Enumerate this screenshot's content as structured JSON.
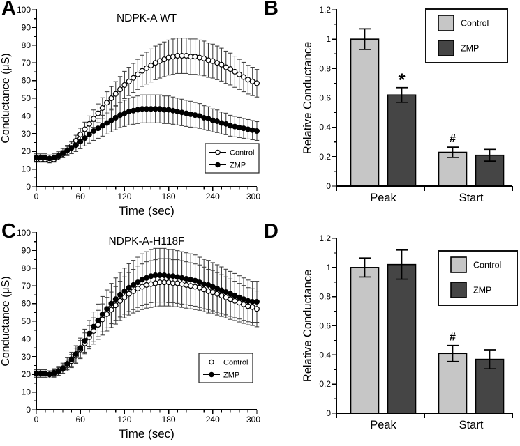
{
  "figure": {
    "background": "#ffffff",
    "text_color": "#000000",
    "panels": [
      "A",
      "B",
      "C",
      "D"
    ]
  },
  "chart_data": [
    {
      "panel": "A",
      "type": "line",
      "title": "NDPK-A WT",
      "xlabel": "Time (sec)",
      "ylabel": "Conductance (μS)",
      "xlim": [
        0,
        300
      ],
      "ylim": [
        0,
        100
      ],
      "x_major_ticks": [
        0,
        60,
        120,
        180,
        240,
        300
      ],
      "x_minor_step": 12,
      "y_major_step": 10,
      "y_minor_step": 5,
      "legend": {
        "position": "bottom-right",
        "entries": [
          "Control",
          "ZMP"
        ]
      },
      "x": [
        0,
        6,
        12,
        18,
        24,
        30,
        36,
        42,
        48,
        54,
        60,
        66,
        72,
        78,
        84,
        90,
        96,
        102,
        108,
        114,
        120,
        126,
        132,
        138,
        144,
        150,
        156,
        162,
        168,
        174,
        180,
        186,
        192,
        198,
        204,
        210,
        216,
        222,
        228,
        234,
        240,
        246,
        252,
        258,
        264,
        270,
        276,
        282,
        288,
        294,
        300
      ],
      "series": [
        {
          "name": "Control",
          "marker": "open-circle",
          "line_color": "#000000",
          "values": [
            15.5,
            15.5,
            15.5,
            15,
            15.5,
            17,
            18.5,
            20.5,
            23,
            26,
            29.5,
            32.5,
            35.5,
            38.5,
            41.5,
            44.5,
            47.5,
            50,
            52.5,
            55,
            57.5,
            59.5,
            61.5,
            63.5,
            65.5,
            67,
            68.5,
            70,
            71,
            72,
            73,
            73.5,
            74,
            74,
            74,
            73.5,
            73.5,
            73,
            72.5,
            71.5,
            71,
            70,
            69,
            67.5,
            66.5,
            65,
            63.5,
            62,
            60.5,
            59.5,
            58.5
          ],
          "errors": [
            1.6,
            1.6,
            1.6,
            1.5,
            1.6,
            1.8,
            2,
            2.3,
            2.7,
            3.1,
            3.6,
            4,
            4.5,
            4.9,
            5.3,
            5.8,
            6.2,
            6.6,
            6.9,
            7.3,
            7.7,
            8,
            8.2,
            8.5,
            8.8,
            9,
            9.3,
            9.5,
            9.6,
            9.8,
            9.9,
            10,
            10,
            10,
            10,
            10,
            10,
            9.9,
            9.8,
            9.7,
            9.6,
            9.5,
            9.3,
            9.1,
            9,
            8.8,
            8.5,
            8.3,
            8.1,
            8,
            7.8
          ]
        },
        {
          "name": "ZMP",
          "marker": "filled-circle",
          "line_color": "#000000",
          "values": [
            16.5,
            16.5,
            16.5,
            16,
            16.5,
            17.5,
            19,
            20.5,
            22,
            23.5,
            25.5,
            27.5,
            29.5,
            31.5,
            33,
            34.5,
            36,
            37.5,
            39,
            40.5,
            41.5,
            42.5,
            43,
            43.5,
            44,
            44,
            44,
            44,
            44,
            43.5,
            43.5,
            43,
            42.5,
            42,
            41.5,
            41,
            40.5,
            40,
            39,
            38.5,
            37.5,
            37,
            36,
            35.5,
            34.5,
            34,
            33.5,
            33,
            32.5,
            32,
            31.5
          ],
          "errors": [
            2.1,
            2.1,
            2.1,
            2,
            2.1,
            2.3,
            2.6,
            2.9,
            3.3,
            3.6,
            4,
            4.4,
            4.8,
            5.3,
            5.6,
            5.9,
            6.2,
            6.5,
            6.8,
            7.1,
            7.4,
            7.6,
            7.7,
            7.8,
            7.9,
            7.9,
            7.9,
            7.9,
            7.9,
            7.8,
            7.8,
            7.7,
            7.6,
            7.5,
            7.4,
            7.3,
            7.1,
            7,
            6.8,
            6.7,
            6.5,
            6.4,
            6.2,
            6.1,
            5.9,
            5.8,
            5.7,
            5.6,
            5.5,
            5.4,
            5.3
          ]
        }
      ]
    },
    {
      "panel": "B",
      "type": "bar",
      "ylabel": "Relative Conductance",
      "ylim": [
        0,
        1.2
      ],
      "y_major_step": 0.2,
      "y_minor_step": 0.1,
      "categories": [
        "Peak",
        "Start"
      ],
      "series": [
        {
          "name": "Control",
          "color": "#c6c6c6",
          "values": [
            1.0,
            0.23
          ],
          "errors": [
            0.07,
            0.035
          ]
        },
        {
          "name": "ZMP",
          "color": "#454545",
          "values": [
            0.62,
            0.21
          ],
          "errors": [
            0.05,
            0.04
          ]
        }
      ],
      "annotations": [
        {
          "text": "*",
          "category": "Peak",
          "series": "ZMP"
        },
        {
          "text": "#",
          "category": "Start",
          "series": "Control"
        }
      ],
      "legend": {
        "position": "top-right",
        "entries": [
          "Control",
          "ZMP"
        ]
      }
    },
    {
      "panel": "C",
      "type": "line",
      "title": "NDPK-A-H118F",
      "xlabel": "Time (sec)",
      "ylabel": "Conductance (μS)",
      "xlim": [
        0,
        300
      ],
      "ylim": [
        0,
        100
      ],
      "x_major_ticks": [
        0,
        60,
        120,
        180,
        240,
        300
      ],
      "x_minor_step": 12,
      "y_major_step": 10,
      "y_minor_step": 5,
      "legend": {
        "position": "bottom-right",
        "entries": [
          "Control",
          "ZMP"
        ]
      },
      "x": [
        0,
        6,
        12,
        18,
        24,
        30,
        36,
        42,
        48,
        54,
        60,
        66,
        72,
        78,
        84,
        90,
        96,
        102,
        108,
        114,
        120,
        126,
        132,
        138,
        144,
        150,
        156,
        162,
        168,
        174,
        180,
        186,
        192,
        198,
        204,
        210,
        216,
        222,
        228,
        234,
        240,
        246,
        252,
        258,
        264,
        270,
        276,
        282,
        288,
        294,
        300
      ],
      "series": [
        {
          "name": "Control",
          "marker": "open-circle",
          "line_color": "#000000",
          "values": [
            20.5,
            20.5,
            20.5,
            20,
            20.5,
            21.5,
            23,
            25,
            27.5,
            30.5,
            34,
            37.5,
            41,
            44.5,
            48,
            51,
            54,
            56.5,
            59,
            61.5,
            63.5,
            65.5,
            67,
            68.5,
            69.5,
            70.5,
            71,
            71.5,
            72,
            72,
            72,
            71.5,
            71.5,
            71,
            70.5,
            70,
            69.5,
            69,
            68,
            67,
            66.5,
            65.5,
            64.5,
            63.5,
            62.5,
            61.5,
            60.5,
            59.5,
            58.5,
            58,
            57
          ],
          "errors": [
            2.1,
            2.1,
            2.1,
            2,
            2.1,
            2.3,
            2.7,
            3.1,
            3.7,
            4.3,
            5.1,
            5.9,
            6.6,
            7.4,
            8.2,
            8.8,
            9.5,
            10,
            10.6,
            11.1,
            11.6,
            12,
            12.3,
            12.7,
            12.9,
            13.1,
            13.2,
            13.3,
            13.4,
            13.4,
            13.4,
            13.3,
            13.3,
            13.2,
            13.1,
            13,
            12.9,
            12.8,
            12.6,
            12.3,
            12.2,
            12,
            11.8,
            11.6,
            11.4,
            11.1,
            10.9,
            10.7,
            10.5,
            10.4,
            10.1
          ]
        },
        {
          "name": "ZMP",
          "marker": "filled-circle",
          "line_color": "#000000",
          "values": [
            20.5,
            20.5,
            20.5,
            20,
            21,
            22,
            23.5,
            26,
            28.5,
            31.5,
            35,
            39,
            43,
            47,
            50.5,
            54,
            57,
            60,
            62.5,
            65,
            67,
            69,
            70.5,
            72,
            73.5,
            74.5,
            75.5,
            76,
            76,
            76,
            75.5,
            75.5,
            75,
            74.5,
            74,
            73.5,
            73,
            72,
            71,
            70.5,
            69.5,
            68.5,
            67.5,
            66.5,
            65.5,
            64.5,
            63.5,
            62.5,
            61.5,
            61,
            61
          ],
          "errors": [
            2.1,
            2.1,
            2.1,
            2,
            2.2,
            2.5,
            2.8,
            3.4,
            4,
            4.7,
            5.5,
            6.5,
            7.4,
            8.3,
            9.2,
            10,
            10.7,
            11.4,
            12,
            12.6,
            13,
            13.5,
            13.9,
            14.2,
            14.6,
            14.8,
            15,
            15.2,
            15.2,
            15.2,
            15,
            15,
            14.9,
            14.8,
            14.7,
            14.6,
            14.5,
            14.2,
            14,
            13.9,
            13.6,
            13.4,
            13.2,
            12.9,
            12.7,
            12.5,
            12.2,
            12,
            11.8,
            11.6,
            11.6
          ]
        }
      ]
    },
    {
      "panel": "D",
      "type": "bar",
      "ylabel": "Relative Conductance",
      "ylim": [
        0,
        1.2
      ],
      "y_major_step": 0.2,
      "y_minor_step": 0.1,
      "categories": [
        "Peak",
        "Start"
      ],
      "series": [
        {
          "name": "Control",
          "color": "#c6c6c6",
          "values": [
            1.0,
            0.41
          ],
          "errors": [
            0.065,
            0.055
          ]
        },
        {
          "name": "ZMP",
          "color": "#454545",
          "values": [
            1.02,
            0.37
          ],
          "errors": [
            0.1,
            0.065
          ]
        }
      ],
      "annotations": [
        {
          "text": "#",
          "category": "Start",
          "series": "Control"
        }
      ],
      "legend": {
        "position": "top-right",
        "entries": [
          "Control",
          "ZMP"
        ]
      }
    }
  ]
}
